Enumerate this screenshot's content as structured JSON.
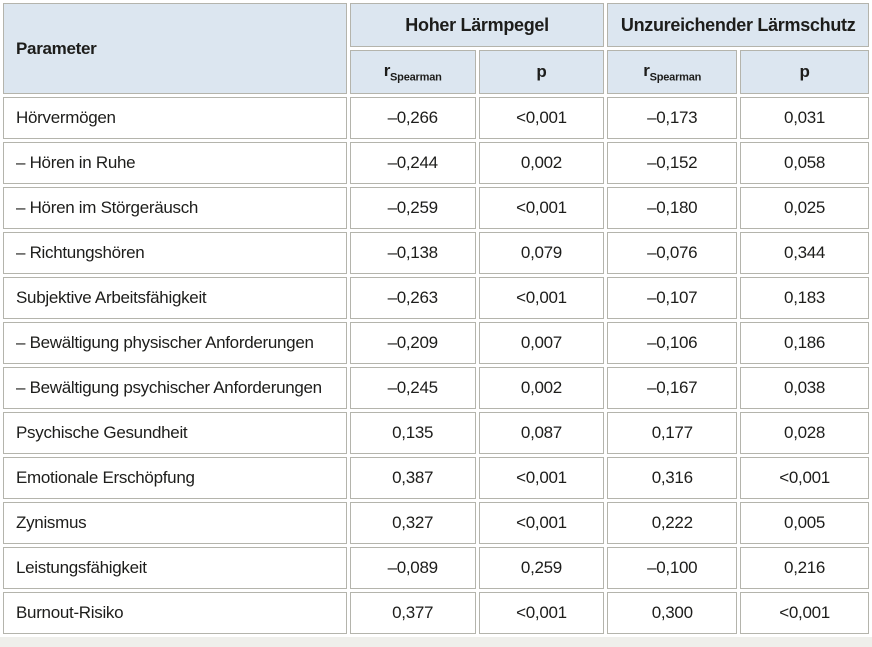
{
  "colors": {
    "header_bg": "#dce6f0",
    "border": "#b4b4ac",
    "cell_bg": "#ffffff",
    "text": "#1d1d1b",
    "strip_bg": "#efefeb"
  },
  "table": {
    "param_header": "Parameter",
    "group_headers": [
      {
        "label": "Hoher Lärmpegel"
      },
      {
        "label": "Unzureichender Lärmschutz"
      }
    ],
    "sub_headers": {
      "r_base": "r",
      "r_subscript": "Spearman",
      "p": "p"
    },
    "rows": [
      {
        "param": "Hörvermögen",
        "values": [
          "–0,266",
          "<0,001",
          "–0,173",
          "0,031"
        ]
      },
      {
        "param": "– Hören in Ruhe",
        "values": [
          "–0,244",
          "0,002",
          "–0,152",
          "0,058"
        ]
      },
      {
        "param": "– Hören im Störgeräusch",
        "values": [
          "–0,259",
          "<0,001",
          "–0,180",
          "0,025"
        ]
      },
      {
        "param": "– Richtungshören",
        "values": [
          "–0,138",
          "0,079",
          "–0,076",
          "0,344"
        ]
      },
      {
        "param": "Subjektive Arbeitsfähigkeit",
        "values": [
          "–0,263",
          "<0,001",
          "–0,107",
          "0,183"
        ]
      },
      {
        "param": "– Bewältigung physischer Anforderungen",
        "values": [
          "–0,209",
          "0,007",
          "–0,106",
          "0,186"
        ]
      },
      {
        "param": "– Bewältigung psychischer Anforderungen",
        "values": [
          "–0,245",
          "0,002",
          "–0,167",
          "0,038"
        ]
      },
      {
        "param": "Psychische Gesundheit",
        "values": [
          "0,135",
          "0,087",
          "0,177",
          "0,028"
        ]
      },
      {
        "param": "Emotionale Erschöpfung",
        "values": [
          "0,387",
          "<0,001",
          "0,316",
          "<0,001"
        ]
      },
      {
        "param": "Zynismus",
        "values": [
          "0,327",
          "<0,001",
          "0,222",
          "0,005"
        ]
      },
      {
        "param": "Leistungsfähigkeit",
        "values": [
          "–0,089",
          "0,259",
          "–0,100",
          "0,216"
        ]
      },
      {
        "param": "Burnout-Risiko",
        "values": [
          "0,377",
          "<0,001",
          "0,300",
          "<0,001"
        ]
      }
    ]
  }
}
